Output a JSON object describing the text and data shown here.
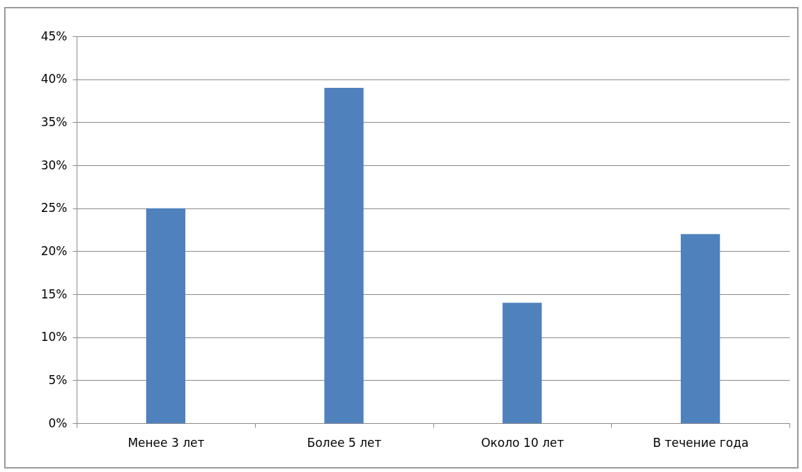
{
  "chart_data": {
    "type": "bar",
    "categories": [
      "Менее 3 лет",
      "Более 5 лет",
      "Около 10 лет",
      "В течение года"
    ],
    "values": [
      25,
      39,
      14,
      22
    ],
    "color": "#4f81bd",
    "ylim": [
      0,
      45
    ],
    "yticks": [
      {
        "value": 0,
        "label": "0%"
      },
      {
        "value": 5,
        "label": "5%"
      },
      {
        "value": 10,
        "label": "10%"
      },
      {
        "value": 15,
        "label": "15%"
      },
      {
        "value": 20,
        "label": "20%"
      },
      {
        "value": 25,
        "label": "25%"
      },
      {
        "value": 30,
        "label": "30%"
      },
      {
        "value": 35,
        "label": "35%"
      },
      {
        "value": 40,
        "label": "40%"
      },
      {
        "value": 45,
        "label": "45%"
      }
    ],
    "grid": "y"
  }
}
